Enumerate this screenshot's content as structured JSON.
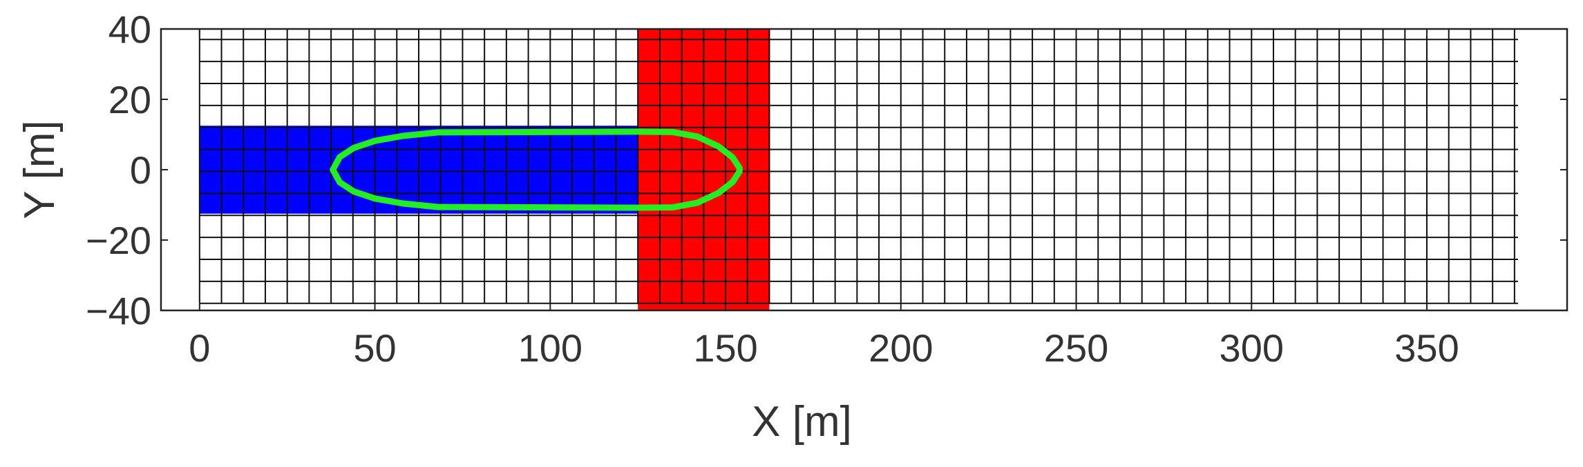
{
  "chart_data": {
    "type": "heatmap",
    "xlabel": "X [m]",
    "ylabel": "Y [m]",
    "xlim": [
      -11,
      390
    ],
    "ylim": [
      -40,
      40
    ],
    "x_ticks": [
      0,
      50,
      100,
      150,
      200,
      250,
      300,
      350
    ],
    "y_ticks": [
      -40,
      -20,
      0,
      20,
      40
    ],
    "grid": {
      "x_start": 0,
      "x_end": 376,
      "x_step": 6.25,
      "y_start": -38,
      "y_end": 40,
      "y_step": 6.25
    },
    "regions": [
      {
        "name": "blue-region-wide",
        "x": [
          0,
          143
        ],
        "y": [
          -12.5,
          12.5
        ],
        "color": "#0000ff"
      },
      {
        "name": "blue-region-nose",
        "x": [
          143,
          156
        ],
        "y": [
          -6.25,
          6.25
        ],
        "color": "#0000ff"
      },
      {
        "name": "red-region",
        "x": [
          125,
          162.5
        ],
        "y": [
          -40,
          40
        ],
        "color": "#ff0000"
      }
    ],
    "hull_outline": {
      "color": "#22ee22",
      "points": [
        [
          38,
          0
        ],
        [
          40,
          3.6
        ],
        [
          44,
          6.2
        ],
        [
          50,
          8.2
        ],
        [
          58,
          9.6
        ],
        [
          68,
          10.6
        ],
        [
          125,
          10.8
        ],
        [
          135,
          10.7
        ],
        [
          142,
          9.4
        ],
        [
          148,
          6.6
        ],
        [
          152,
          3.5
        ],
        [
          154,
          0.5
        ],
        [
          154,
          -0.5
        ],
        [
          152,
          -3.5
        ],
        [
          148,
          -6.6
        ],
        [
          142,
          -9.4
        ],
        [
          135,
          -10.7
        ],
        [
          125,
          -10.8
        ],
        [
          68,
          -10.6
        ],
        [
          58,
          -9.6
        ],
        [
          50,
          -8.2
        ],
        [
          44,
          -6.2
        ],
        [
          40,
          -3.6
        ]
      ]
    }
  }
}
